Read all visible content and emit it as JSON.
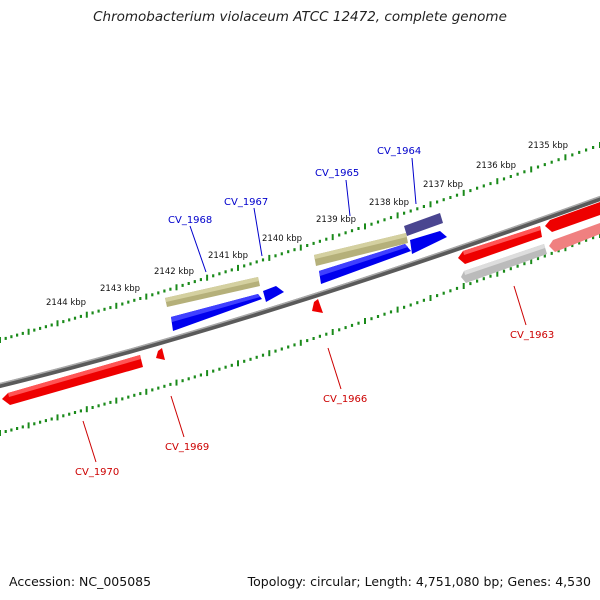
{
  "title": "Chromobacterium violaceum ATCC 12472, complete genome",
  "footer": {
    "accession": "Accession: NC_005085",
    "summary": "Topology: circular; Length: 4,751,080 bp; Genes: 4,530"
  },
  "colors": {
    "plus_cds": "#0000ee",
    "minus_cds": "#ee0000",
    "plus_gene": "#b5b07a",
    "plus_highlight": "#4a4590",
    "minus_pseudo": "#bbbbbb",
    "minus_pink": "#f08080",
    "backbone": "#808080",
    "ruler": "#1a8a1a",
    "plus_label": "#0000cc",
    "minus_label": "#cc0000"
  },
  "ruler_labels": [
    "2135 kbp",
    "2136 kbp",
    "2137 kbp",
    "2138 kbp",
    "2139 kbp",
    "2140 kbp",
    "2141 kbp",
    "2142 kbp",
    "2143 kbp",
    "2144 kbp"
  ],
  "plus_genes": [
    "CV_1964",
    "CV_1965",
    "CV_1967",
    "CV_1968"
  ],
  "minus_genes": [
    "CV_1963",
    "CV_1966",
    "CV_1969",
    "CV_1970"
  ]
}
